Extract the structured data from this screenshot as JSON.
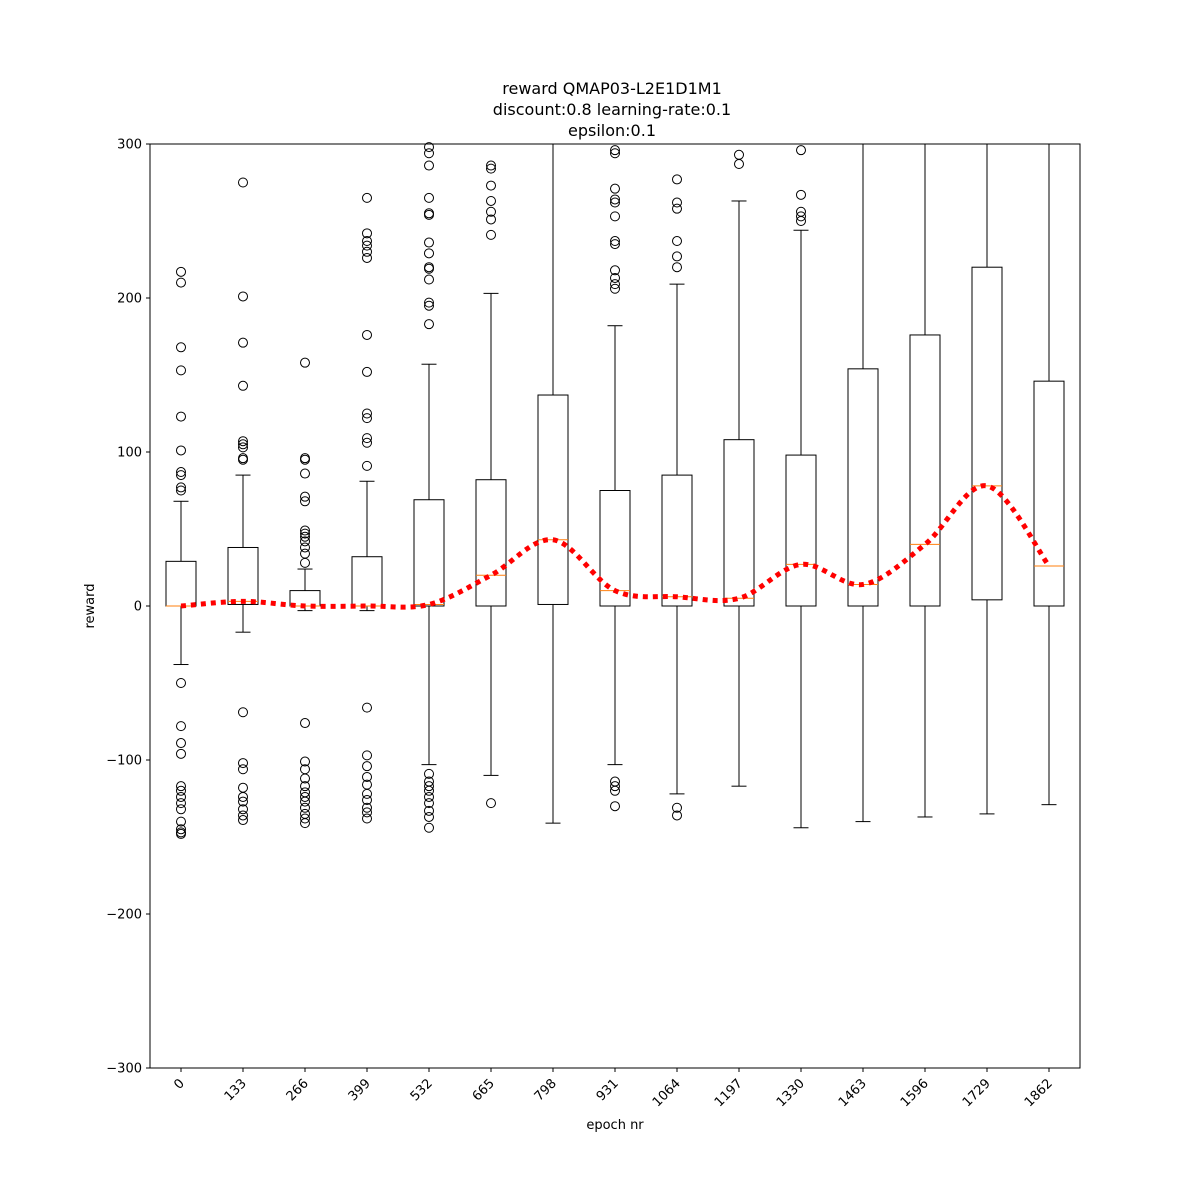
{
  "chart_data": {
    "type": "box",
    "title_lines": [
      "reward QMAP03-L2E1D1M1",
      "discount:0.8 learning-rate:0.1",
      "epsilon:0.1"
    ],
    "xlabel": "epoch nr",
    "ylabel": "reward",
    "ylim": [
      -300,
      300
    ],
    "yticks": [
      -300,
      -200,
      -100,
      0,
      100,
      200,
      300
    ],
    "grid": false,
    "colors": {
      "box": "#000000",
      "median": "#ff7f0e",
      "trend": "#ff0000"
    },
    "categories": [
      "0",
      "133",
      "266",
      "399",
      "532",
      "665",
      "798",
      "931",
      "1064",
      "1197",
      "1330",
      "1463",
      "1596",
      "1729",
      "1862"
    ],
    "boxes": [
      {
        "epoch": "0",
        "whisker_low": -38,
        "q1": 0,
        "median": 0,
        "q3": 29,
        "whisker_high": 68,
        "outliers": [
          217,
          210,
          168,
          153,
          123,
          101,
          87,
          85,
          77,
          75,
          -50,
          -78,
          -89,
          -96,
          -117,
          -120,
          -124,
          -128,
          -132,
          -140,
          -145,
          -148,
          -147
        ]
      },
      {
        "epoch": "133",
        "whisker_low": -17,
        "q1": 1,
        "median": 3,
        "q3": 38,
        "whisker_high": 85,
        "outliers": [
          275,
          201,
          171,
          143,
          107,
          105,
          103,
          96,
          95,
          -69,
          -102,
          -106,
          -118,
          -124,
          -127,
          -132,
          -136,
          -139
        ]
      },
      {
        "epoch": "266",
        "whisker_low": -3,
        "q1": 0,
        "median": 0,
        "q3": 10,
        "whisker_high": 24,
        "outliers": [
          158,
          96,
          95,
          86,
          71,
          68,
          49,
          47,
          45,
          42,
          38,
          34,
          28,
          -76,
          -101,
          -106,
          -112,
          -117,
          -121,
          -124,
          -127,
          -131,
          -135,
          -138,
          -141
        ]
      },
      {
        "epoch": "399",
        "whisker_low": -3,
        "q1": 0,
        "median": 0,
        "q3": 32,
        "whisker_high": 81,
        "outliers": [
          265,
          242,
          237,
          234,
          230,
          226,
          176,
          152,
          125,
          122,
          109,
          106,
          91,
          -66,
          -97,
          -104,
          -111,
          -116,
          -122,
          -126,
          -131,
          -134,
          -138
        ]
      },
      {
        "epoch": "532",
        "whisker_low": -103,
        "q1": 0,
        "median": 1,
        "q3": 69,
        "whisker_high": 157,
        "outliers": [
          298,
          294,
          286,
          265,
          255,
          254,
          236,
          229,
          220,
          219,
          212,
          197,
          195,
          183,
          -109,
          -114,
          -117,
          -120,
          -124,
          -128,
          -133,
          -137,
          -144
        ]
      },
      {
        "epoch": "665",
        "whisker_low": -110,
        "q1": 0,
        "median": 20,
        "q3": 82,
        "whisker_high": 203,
        "outliers": [
          286,
          284,
          273,
          263,
          256,
          251,
          241,
          -128
        ]
      },
      {
        "epoch": "798",
        "whisker_low": -141,
        "q1": 1,
        "median": 43,
        "q3": 137,
        "whisker_high": 300,
        "outliers": []
      },
      {
        "epoch": "931",
        "whisker_low": -103,
        "q1": 0,
        "median": 10,
        "q3": 75,
        "whisker_high": 182,
        "outliers": [
          296,
          294,
          271,
          264,
          262,
          253,
          237,
          235,
          218,
          213,
          209,
          206,
          -114,
          -117,
          -120,
          -130
        ]
      },
      {
        "epoch": "1064",
        "whisker_low": -122,
        "q1": 0,
        "median": 6,
        "q3": 85,
        "whisker_high": 209,
        "outliers": [
          277,
          262,
          258,
          237,
          227,
          220,
          -131,
          -136
        ]
      },
      {
        "epoch": "1197",
        "whisker_low": -117,
        "q1": 0,
        "median": 5,
        "q3": 108,
        "whisker_high": 263,
        "outliers": [
          293,
          287
        ]
      },
      {
        "epoch": "1330",
        "whisker_low": -144,
        "q1": 0,
        "median": 27,
        "q3": 98,
        "whisker_high": 244,
        "outliers": [
          296,
          267,
          256,
          253,
          250
        ]
      },
      {
        "epoch": "1463",
        "whisker_low": -140,
        "q1": 0,
        "median": 14,
        "q3": 154,
        "whisker_high": 300,
        "outliers": []
      },
      {
        "epoch": "1596",
        "whisker_low": -137,
        "q1": 0,
        "median": 40,
        "q3": 176,
        "whisker_high": 300,
        "outliers": []
      },
      {
        "epoch": "1729",
        "whisker_low": -135,
        "q1": 4,
        "median": 78,
        "q3": 220,
        "whisker_high": 300,
        "outliers": []
      },
      {
        "epoch": "1862",
        "whisker_low": -129,
        "q1": 0,
        "median": 26,
        "q3": 146,
        "whisker_high": 300,
        "outliers": []
      }
    ]
  }
}
